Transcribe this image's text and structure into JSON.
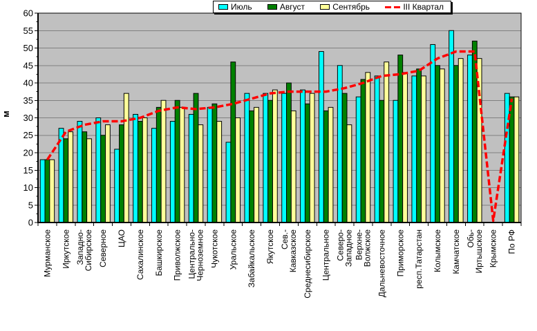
{
  "legend": {
    "items": [
      {
        "key": "jul",
        "label": "Июль",
        "color": "#00FFFF",
        "marker": "box"
      },
      {
        "key": "aug",
        "label": "Август",
        "color": "#008000",
        "marker": "box"
      },
      {
        "key": "sep",
        "label": "Сентябрь",
        "color": "#FFFF99",
        "marker": "box"
      },
      {
        "key": "q3",
        "label": "III Квартал",
        "color": "#FF0000",
        "marker": "dash"
      }
    ]
  },
  "y_axis": {
    "title": "м",
    "tick_labels": [
      "0",
      "5",
      "10",
      "15",
      "20",
      "25",
      "30",
      "35",
      "40",
      "45",
      "50",
      "55",
      "60"
    ]
  },
  "chart_data": {
    "type": "bar",
    "title": "",
    "xlabel": "",
    "ylabel": "м",
    "ylim": [
      0,
      60
    ],
    "y_step": 5,
    "grid": true,
    "legend_position": "top",
    "plot_bg": "#C0C0C0",
    "grid_color": "#808080",
    "axis_color": "#000000",
    "categories": [
      "Мурманское",
      "Иркутское",
      "Западно-\nСибирское",
      "Северное",
      "ЦАО",
      "Сахалинское",
      "Башкирское",
      "Приволжское",
      "Центрально-\nЧерноземное",
      "Чукотское",
      "Уральское",
      "Забайкальское",
      "Якутское",
      "Сев.-\nКавказское",
      "Среднесибирское",
      "Центральное",
      "Северо-\nЗападное",
      "Верхне-\nВолжское",
      "Дальневосточное",
      "Приморское",
      "респ.Татарстан",
      "Колымское",
      "Камчатское",
      "Обь-\nИртышское",
      "Крымское",
      "По РФ"
    ],
    "series": [
      {
        "key": "jul",
        "name": "Июль",
        "kind": "bar",
        "color": "#00FFFF",
        "values": [
          18,
          27,
          29,
          30,
          21,
          31,
          27,
          29,
          31,
          33,
          23,
          37,
          37,
          37,
          38,
          49,
          45,
          36,
          42,
          35,
          42,
          51,
          55,
          48,
          0,
          37
        ]
      },
      {
        "key": "aug",
        "name": "Август",
        "kind": "bar",
        "color": "#008000",
        "values": [
          18,
          24,
          26,
          25,
          28,
          29,
          33,
          35,
          37,
          34,
          46,
          32,
          35,
          40,
          34,
          32,
          37,
          41,
          35,
          48,
          44,
          45,
          45,
          52,
          0,
          36
        ]
      },
      {
        "key": "sep",
        "name": "Сентябрь",
        "kind": "bar",
        "color": "#FFFF99",
        "values": [
          18,
          26,
          24,
          28,
          37,
          30,
          35,
          33,
          28,
          29,
          30,
          33,
          38,
          32,
          37,
          33,
          28,
          43,
          46,
          43,
          42,
          44,
          47,
          47,
          0,
          36
        ]
      },
      {
        "key": "q3",
        "name": "III Квартал",
        "kind": "line",
        "dashed": true,
        "color": "#FF0000",
        "values": [
          18,
          26,
          28,
          29,
          29,
          30,
          32,
          33,
          32.5,
          33,
          34,
          35.5,
          37,
          37.5,
          37.5,
          37.5,
          38.5,
          40,
          42,
          42.5,
          43.5,
          47,
          49,
          49,
          0.5,
          35.5
        ]
      }
    ]
  }
}
